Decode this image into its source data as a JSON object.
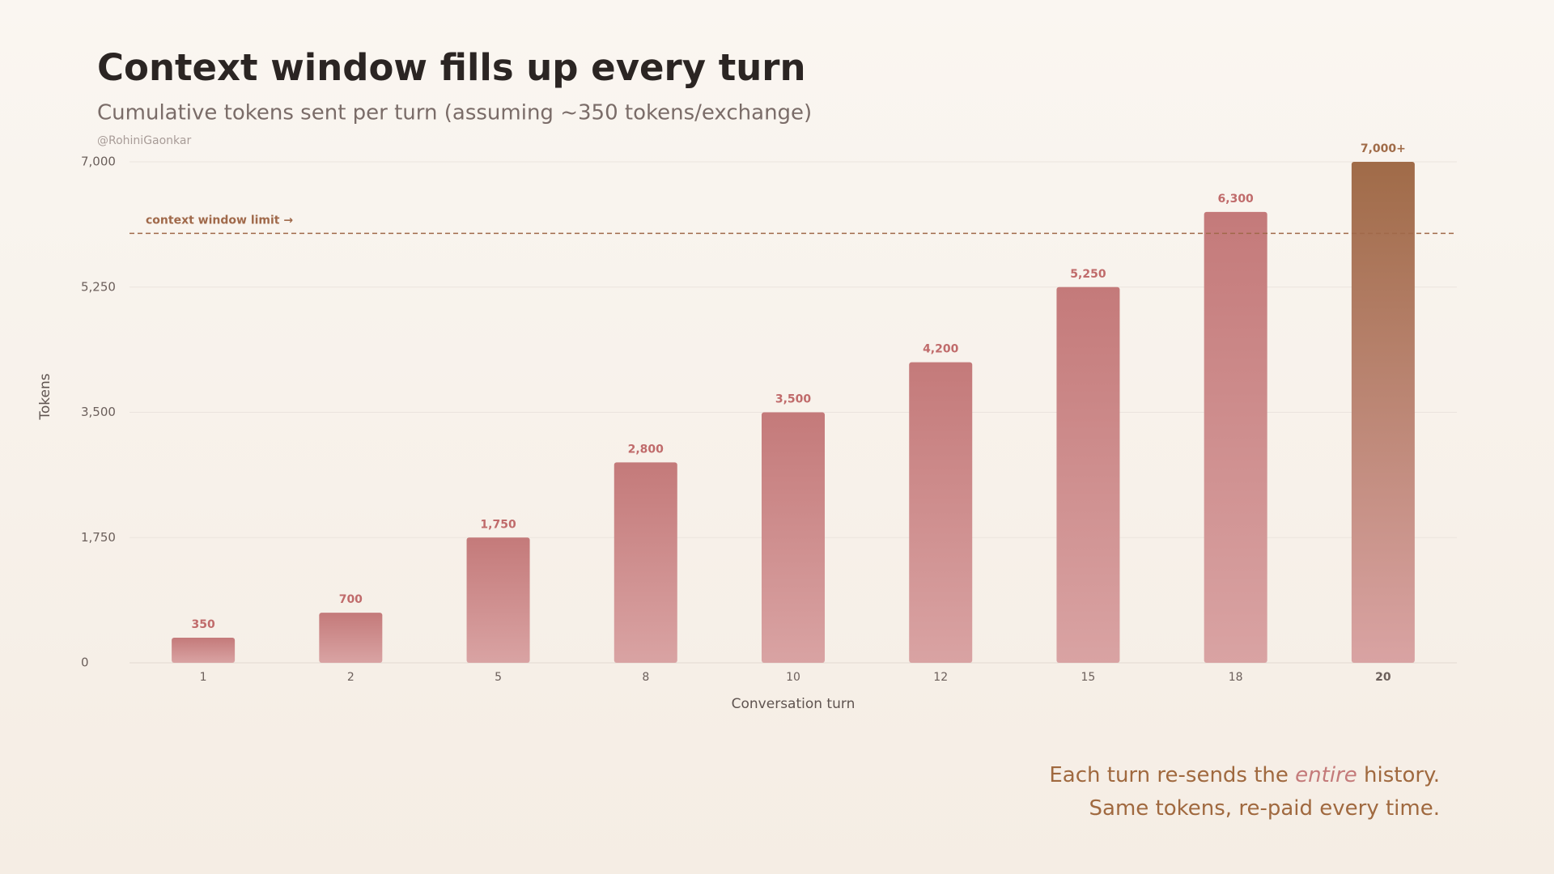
{
  "chart_data": {
    "type": "bar",
    "title": "Context window fills up every turn",
    "subtitle": "Cumulative tokens sent per turn (assuming ~350 tokens/exchange)",
    "credit": "@RohiniGaonkar",
    "x_label": "Conversation turn",
    "y_label": "Tokens",
    "categories": [
      "1",
      "2",
      "5",
      "8",
      "10",
      "12",
      "15",
      "18",
      "20"
    ],
    "values": [
      350,
      700,
      1750,
      2800,
      3500,
      4200,
      5250,
      6300,
      7000
    ],
    "value_labels": [
      "350",
      "700",
      "1,750",
      "2,800",
      "3,500",
      "4,200",
      "5,250",
      "6,300",
      "7,000+"
    ],
    "color": "#c47a7a",
    "highlight_color": "#a06b48",
    "ylim": [
      0,
      7000
    ],
    "yticks": [
      0,
      {
        "value": 1750,
        "label": "1,750"
      },
      {
        "value": 3500,
        "label": "3,500"
      },
      {
        "value": 5250,
        "label": "5,250"
      },
      {
        "value": 7000,
        "label": "7,000"
      }
    ],
    "grid": true,
    "reference_line": {
      "value": 6000,
      "label": "context window limit →",
      "color": "#a0694a"
    },
    "annotation": {
      "before": "Each turn re-sends the",
      "emphasis": "entire",
      "after": "history.",
      "line2": "Same tokens, re-paid every time."
    }
  }
}
